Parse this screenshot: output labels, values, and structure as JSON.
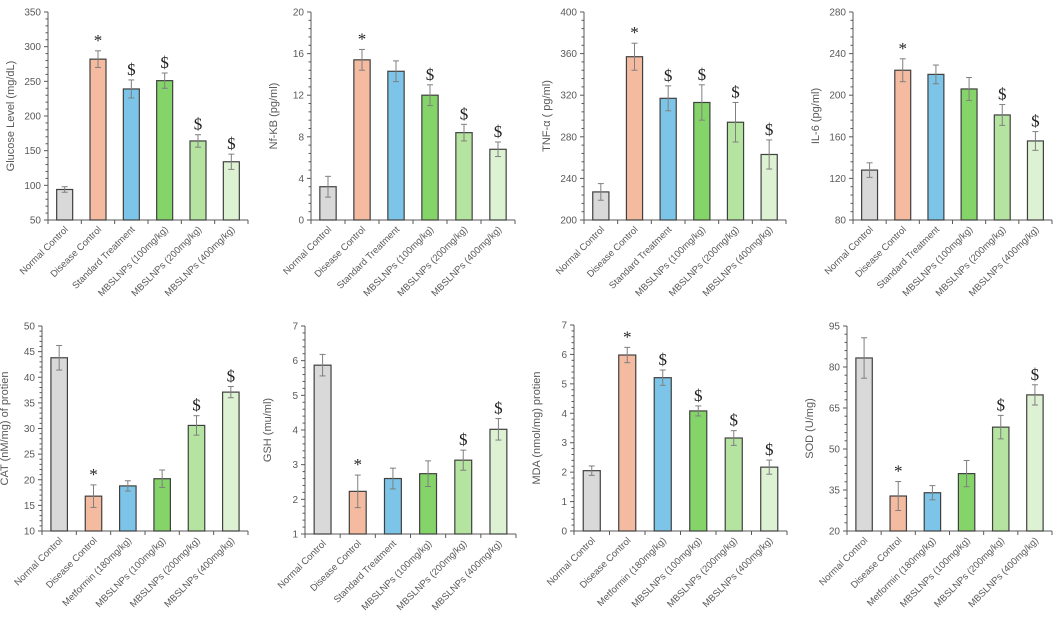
{
  "colors": {
    "Normal Control": "#d9d9d9",
    "Disease Control": "#f4bba0",
    "Standard Treatment": "#7dc5e8",
    "Metformin (180mg/kg)": "#7dc5e8",
    "MBSLNPs (100mg/kg)": "#85d46a",
    "MBSLNPs (200mg/kg)": "#b5e4a0",
    "MBSLNPs (400mg/kg)": "#ddf2d2"
  },
  "chart_data": [
    {
      "type": "bar",
      "title": "",
      "xlabel": "",
      "ylabel": "Glucose Level (mg/dL)",
      "ylim": [
        50,
        350
      ],
      "yticks": [
        50,
        100,
        150,
        200,
        250,
        300,
        350
      ],
      "categories": [
        "Normal Control",
        "Disease Control",
        "Standard Treatment",
        "MBSLNPs (100mg/kg)",
        "MBSLNPs (200mg/kg)",
        "MBSLNPs (400mg/kg)"
      ],
      "values": [
        94,
        282,
        239,
        251,
        164,
        134
      ],
      "errors": [
        4,
        12,
        13,
        11,
        9,
        11
      ],
      "annotations": [
        "",
        "*",
        "$",
        "$",
        "$",
        "$"
      ],
      "grid": false
    },
    {
      "type": "bar",
      "title": "",
      "xlabel": "",
      "ylabel": "Nf-KB (pg/ml)",
      "ylim": [
        0,
        20
      ],
      "yticks": [
        0,
        4,
        8,
        12,
        16,
        20
      ],
      "categories": [
        "Normal Control",
        "Disease Control",
        "Standard Treatment",
        "MBSLNPs (100mg/kg)",
        "MBSLNPs (200mg/kg)",
        "MBSLNPs (400mg/kg)"
      ],
      "values": [
        3.2,
        15.4,
        14.3,
        12.0,
        8.4,
        6.8
      ],
      "errors": [
        1.0,
        1.0,
        1.0,
        1.0,
        0.8,
        0.7
      ],
      "annotations": [
        "",
        "*",
        "",
        "$",
        "$",
        "$"
      ],
      "grid": false
    },
    {
      "type": "bar",
      "title": "",
      "xlabel": "",
      "ylabel": "TNF-α ( pg/ml)",
      "ylim": [
        200,
        400
      ],
      "yticks": [
        200,
        240,
        280,
        320,
        360,
        400
      ],
      "categories": [
        "Normal Control",
        "Disease Control",
        "Standard Treatment",
        "MBSLNPs (100mg/kg)",
        "MBSLNPs (200mg/kg)",
        "MBSLNPs (400mg/kg)"
      ],
      "values": [
        227,
        357,
        317,
        313,
        294,
        263
      ],
      "errors": [
        8,
        13,
        12,
        17,
        19,
        14
      ],
      "annotations": [
        "",
        "*",
        "$",
        "$",
        "$",
        "$"
      ],
      "grid": false
    },
    {
      "type": "bar",
      "title": "",
      "xlabel": "",
      "ylabel": "IL-6 (pg/ml)",
      "ylim": [
        80,
        280
      ],
      "yticks": [
        80,
        120,
        160,
        200,
        240,
        280
      ],
      "categories": [
        "Normal Control",
        "Disease Control",
        "Standard Treatment",
        "MBSLNPs (100mg/kg)",
        "MBSLNPs (200mg/kg)",
        "MBSLNPs (400mg/kg)"
      ],
      "values": [
        128,
        224,
        220,
        206,
        181,
        156
      ],
      "errors": [
        7,
        11,
        9,
        11,
        10,
        9
      ],
      "annotations": [
        "",
        "*",
        "",
        "",
        "$",
        "$"
      ],
      "grid": false
    },
    {
      "type": "bar",
      "title": "",
      "xlabel": "",
      "ylabel": "CAT (nM/mg) of protien",
      "ylim": [
        10,
        50
      ],
      "yticks": [
        10,
        15,
        20,
        25,
        30,
        35,
        40,
        45,
        50
      ],
      "categories": [
        "Normal Control",
        "Disease Control",
        "Metformin (180mg/kg)",
        "MBSLNPs (100mg/kg)",
        "MBSLNPs (200mg/kg)",
        "MBSLNPs (400mg/kg)"
      ],
      "values": [
        43.8,
        16.8,
        18.8,
        20.2,
        30.6,
        37.1
      ],
      "errors": [
        2.4,
        2.2,
        1.0,
        1.7,
        1.9,
        1.1
      ],
      "annotations": [
        "",
        "*",
        "",
        "",
        "$",
        "$"
      ],
      "grid": false
    },
    {
      "type": "bar",
      "title": "",
      "xlabel": "",
      "ylabel": "GSH (mu/ml)",
      "ylim": [
        1,
        7
      ],
      "yticks": [
        1,
        2,
        3,
        4,
        5,
        6,
        7
      ],
      "categories": [
        "Normal Control",
        "Disease Control",
        "Standard Treatment",
        "MBSLNPs (100mg/kg)",
        "MBSLNPs (200mg/kg)",
        "MBSLNPs (400mg/kg)"
      ],
      "values": [
        5.87,
        2.23,
        2.6,
        2.74,
        3.13,
        4.02
      ],
      "errors": [
        0.31,
        0.47,
        0.3,
        0.37,
        0.29,
        0.31
      ],
      "annotations": [
        "",
        "*",
        "",
        "",
        "$",
        "$"
      ],
      "grid": false
    },
    {
      "type": "bar",
      "title": "",
      "xlabel": "",
      "ylabel": "MDA (nmol/mg) protien",
      "ylim": [
        0,
        7
      ],
      "yticks": [
        0,
        1,
        2,
        3,
        4,
        5,
        6,
        7
      ],
      "categories": [
        "Normal Control",
        "Disease Control",
        "Metformin (180mg/kg)",
        "MBSLNPs (100mg/kg)",
        "MBSLNPs (200mg/kg)",
        "MBSLNPs (400mg/kg)"
      ],
      "values": [
        2.05,
        5.98,
        5.21,
        4.08,
        3.16,
        2.17
      ],
      "errors": [
        0.16,
        0.26,
        0.26,
        0.17,
        0.25,
        0.24
      ],
      "annotations": [
        "",
        "*",
        "$",
        "$",
        "$",
        "$"
      ],
      "grid": false
    },
    {
      "type": "bar",
      "title": "",
      "xlabel": "",
      "ylabel": "SOD (U/mg)",
      "ylim": [
        20,
        95
      ],
      "yticks": [
        20,
        35,
        50,
        65,
        80,
        95
      ],
      "categories": [
        "Normal Control",
        "Disease Control",
        "Metformin (180mg/kg)",
        "MBSLNPs (100mg/kg)",
        "MBSLNPs (200mg/kg)",
        "MBSLNPs (400mg/kg)"
      ],
      "values": [
        83.3,
        32.8,
        34.0,
        41.0,
        58.0,
        69.8
      ],
      "errors": [
        7.4,
        5.3,
        2.6,
        4.8,
        4.3,
        3.7
      ],
      "annotations": [
        "",
        "*",
        "",
        "",
        "$",
        "$"
      ],
      "grid": false
    }
  ]
}
